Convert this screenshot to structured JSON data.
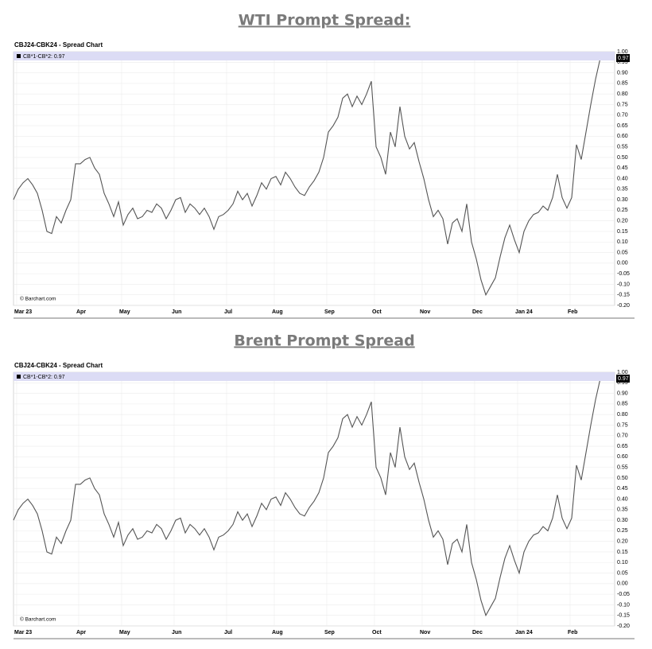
{
  "chart_data": [
    {
      "type": "line",
      "title": "WTI Prompt Spread:",
      "subtitle": "CBJ24-CBK24 - Spread Chart",
      "credit": "© Barchart.com",
      "last_value_label": "0.97",
      "categories": [
        "Mar 23",
        null,
        null,
        null,
        null,
        null,
        null,
        null,
        null,
        null,
        null,
        null,
        null,
        "Apr",
        null,
        null,
        null,
        null,
        null,
        null,
        null,
        null,
        "May",
        null,
        null,
        null,
        null,
        null,
        null,
        null,
        null,
        null,
        null,
        "Jun",
        null,
        null,
        null,
        null,
        null,
        null,
        null,
        null,
        null,
        null,
        "Jul",
        null,
        null,
        null,
        null,
        null,
        null,
        null,
        null,
        null,
        "Aug",
        null,
        null,
        null,
        null,
        null,
        null,
        null,
        null,
        null,
        null,
        "Sep",
        null,
        null,
        null,
        null,
        null,
        null,
        null,
        null,
        null,
        "Oct",
        null,
        null,
        null,
        null,
        null,
        null,
        null,
        null,
        null,
        "Nov",
        null,
        null,
        null,
        null,
        null,
        null,
        null,
        null,
        null,
        null,
        "Dec",
        null,
        null,
        null,
        null,
        null,
        null,
        null,
        null,
        "Jan 24",
        null,
        null,
        null,
        null,
        null,
        null,
        null,
        null,
        null,
        null,
        "Feb",
        null,
        null,
        null,
        null,
        null,
        null,
        null
      ],
      "series": [
        {
          "name": "CB*1-CB*2: 0.97",
          "color": "#555555",
          "values": [
            0.3,
            0.35,
            0.38,
            0.4,
            0.37,
            0.33,
            0.25,
            0.15,
            0.14,
            0.22,
            0.19,
            0.25,
            0.3,
            0.47,
            0.47,
            0.49,
            0.5,
            0.45,
            0.42,
            0.33,
            0.28,
            0.22,
            0.29,
            0.18,
            0.23,
            0.26,
            0.21,
            0.22,
            0.25,
            0.24,
            0.28,
            0.26,
            0.21,
            0.25,
            0.3,
            0.31,
            0.24,
            0.28,
            0.26,
            0.23,
            0.26,
            0.22,
            0.16,
            0.22,
            0.23,
            0.25,
            0.28,
            0.34,
            0.3,
            0.33,
            0.27,
            0.32,
            0.38,
            0.35,
            0.4,
            0.41,
            0.37,
            0.43,
            0.4,
            0.36,
            0.33,
            0.32,
            0.36,
            0.39,
            0.43,
            0.5,
            0.62,
            0.65,
            0.69,
            0.78,
            0.8,
            0.74,
            0.79,
            0.75,
            0.8,
            0.86,
            0.55,
            0.5,
            0.42,
            0.62,
            0.55,
            0.74,
            0.6,
            0.54,
            0.57,
            0.48,
            0.4,
            0.3,
            0.22,
            0.25,
            0.21,
            0.09,
            0.19,
            0.21,
            0.15,
            0.28,
            0.1,
            0.02,
            -0.08,
            -0.15,
            -0.11,
            -0.07,
            0.03,
            0.12,
            0.18,
            0.11,
            0.05,
            0.15,
            0.2,
            0.23,
            0.24,
            0.27,
            0.25,
            0.31,
            0.42,
            0.31,
            0.26,
            0.31,
            0.56,
            0.49,
            0.62,
            0.75,
            0.87,
            0.97
          ]
        }
      ],
      "ylim": [
        -0.2,
        1.0
      ],
      "yticks": [
        {
          "value": -0.2,
          "label": "-0.20"
        },
        {
          "value": -0.15,
          "label": "-0.15"
        },
        {
          "value": -0.1,
          "label": "-0.10"
        },
        {
          "value": -0.05,
          "label": "-0.05"
        },
        {
          "value": 0,
          "label": "0.00"
        },
        {
          "value": 0.05,
          "label": "0.05"
        },
        {
          "value": 0.1,
          "label": "0.10"
        },
        {
          "value": 0.15,
          "label": "0.15"
        },
        {
          "value": 0.2,
          "label": "0.20"
        },
        {
          "value": 0.25,
          "label": "0.25"
        },
        {
          "value": 0.3,
          "label": "0.30"
        },
        {
          "value": 0.35,
          "label": "0.35"
        },
        {
          "value": 0.4,
          "label": "0.40"
        },
        {
          "value": 0.45,
          "label": "0.45"
        },
        {
          "value": 0.5,
          "label": "0.50"
        },
        {
          "value": 0.55,
          "label": "0.55"
        },
        {
          "value": 0.6,
          "label": "0.60"
        },
        {
          "value": 0.65,
          "label": "0.65"
        },
        {
          "value": 0.7,
          "label": "0.70"
        },
        {
          "value": 0.75,
          "label": "0.75"
        },
        {
          "value": 0.8,
          "label": "0.80"
        },
        {
          "value": 0.85,
          "label": "0.85"
        },
        {
          "value": 0.9,
          "label": "0.90"
        },
        {
          "value": 0.95,
          "label": "0.95"
        },
        {
          "value": 1.0,
          "label": "1.00"
        }
      ],
      "grid": true
    },
    {
      "type": "line",
      "title": "Brent Prompt Spread",
      "subtitle": "CBJ24-CBK24 - Spread Chart",
      "credit": "© Barchart.com",
      "last_value_label": "0.97",
      "categories": [
        "Mar 23",
        null,
        null,
        null,
        null,
        null,
        null,
        null,
        null,
        null,
        null,
        null,
        null,
        "Apr",
        null,
        null,
        null,
        null,
        null,
        null,
        null,
        null,
        "May",
        null,
        null,
        null,
        null,
        null,
        null,
        null,
        null,
        null,
        null,
        "Jun",
        null,
        null,
        null,
        null,
        null,
        null,
        null,
        null,
        null,
        null,
        "Jul",
        null,
        null,
        null,
        null,
        null,
        null,
        null,
        null,
        null,
        "Aug",
        null,
        null,
        null,
        null,
        null,
        null,
        null,
        null,
        null,
        null,
        "Sep",
        null,
        null,
        null,
        null,
        null,
        null,
        null,
        null,
        null,
        "Oct",
        null,
        null,
        null,
        null,
        null,
        null,
        null,
        null,
        null,
        "Nov",
        null,
        null,
        null,
        null,
        null,
        null,
        null,
        null,
        null,
        null,
        "Dec",
        null,
        null,
        null,
        null,
        null,
        null,
        null,
        null,
        "Jan 24",
        null,
        null,
        null,
        null,
        null,
        null,
        null,
        null,
        null,
        null,
        "Feb",
        null,
        null,
        null,
        null,
        null,
        null,
        null
      ],
      "series": [
        {
          "name": "CB*1-CB*2: 0.97",
          "color": "#555555",
          "values": [
            0.3,
            0.35,
            0.38,
            0.4,
            0.37,
            0.33,
            0.25,
            0.15,
            0.14,
            0.22,
            0.19,
            0.25,
            0.3,
            0.47,
            0.47,
            0.49,
            0.5,
            0.45,
            0.42,
            0.33,
            0.28,
            0.22,
            0.29,
            0.18,
            0.23,
            0.26,
            0.21,
            0.22,
            0.25,
            0.24,
            0.28,
            0.26,
            0.21,
            0.25,
            0.3,
            0.31,
            0.24,
            0.28,
            0.26,
            0.23,
            0.26,
            0.22,
            0.16,
            0.22,
            0.23,
            0.25,
            0.28,
            0.34,
            0.3,
            0.33,
            0.27,
            0.32,
            0.38,
            0.35,
            0.4,
            0.41,
            0.37,
            0.43,
            0.4,
            0.36,
            0.33,
            0.32,
            0.36,
            0.39,
            0.43,
            0.5,
            0.62,
            0.65,
            0.69,
            0.78,
            0.8,
            0.74,
            0.79,
            0.75,
            0.8,
            0.86,
            0.55,
            0.5,
            0.42,
            0.62,
            0.55,
            0.74,
            0.6,
            0.54,
            0.57,
            0.48,
            0.4,
            0.3,
            0.22,
            0.25,
            0.21,
            0.09,
            0.19,
            0.21,
            0.15,
            0.28,
            0.1,
            0.02,
            -0.08,
            -0.15,
            -0.11,
            -0.07,
            0.03,
            0.12,
            0.18,
            0.11,
            0.05,
            0.15,
            0.2,
            0.23,
            0.24,
            0.27,
            0.25,
            0.31,
            0.42,
            0.31,
            0.26,
            0.31,
            0.56,
            0.49,
            0.62,
            0.75,
            0.87,
            0.97
          ]
        }
      ],
      "ylim": [
        -0.2,
        1.0
      ],
      "yticks": [
        {
          "value": -0.2,
          "label": "-0.20"
        },
        {
          "value": -0.15,
          "label": "-0.15"
        },
        {
          "value": -0.1,
          "label": "-0.10"
        },
        {
          "value": -0.05,
          "label": "-0.05"
        },
        {
          "value": 0,
          "label": "0.00"
        },
        {
          "value": 0.05,
          "label": "0.05"
        },
        {
          "value": 0.1,
          "label": "0.10"
        },
        {
          "value": 0.15,
          "label": "0.15"
        },
        {
          "value": 0.2,
          "label": "0.20"
        },
        {
          "value": 0.25,
          "label": "0.25"
        },
        {
          "value": 0.3,
          "label": "0.30"
        },
        {
          "value": 0.35,
          "label": "0.35"
        },
        {
          "value": 0.4,
          "label": "0.40"
        },
        {
          "value": 0.45,
          "label": "0.45"
        },
        {
          "value": 0.5,
          "label": "0.50"
        },
        {
          "value": 0.55,
          "label": "0.55"
        },
        {
          "value": 0.6,
          "label": "0.60"
        },
        {
          "value": 0.65,
          "label": "0.65"
        },
        {
          "value": 0.7,
          "label": "0.70"
        },
        {
          "value": 0.75,
          "label": "0.75"
        },
        {
          "value": 0.8,
          "label": "0.80"
        },
        {
          "value": 0.85,
          "label": "0.85"
        },
        {
          "value": 0.9,
          "label": "0.90"
        },
        {
          "value": 0.95,
          "label": "0.95"
        },
        {
          "value": 1.0,
          "label": "1.00"
        }
      ],
      "grid": true
    }
  ]
}
